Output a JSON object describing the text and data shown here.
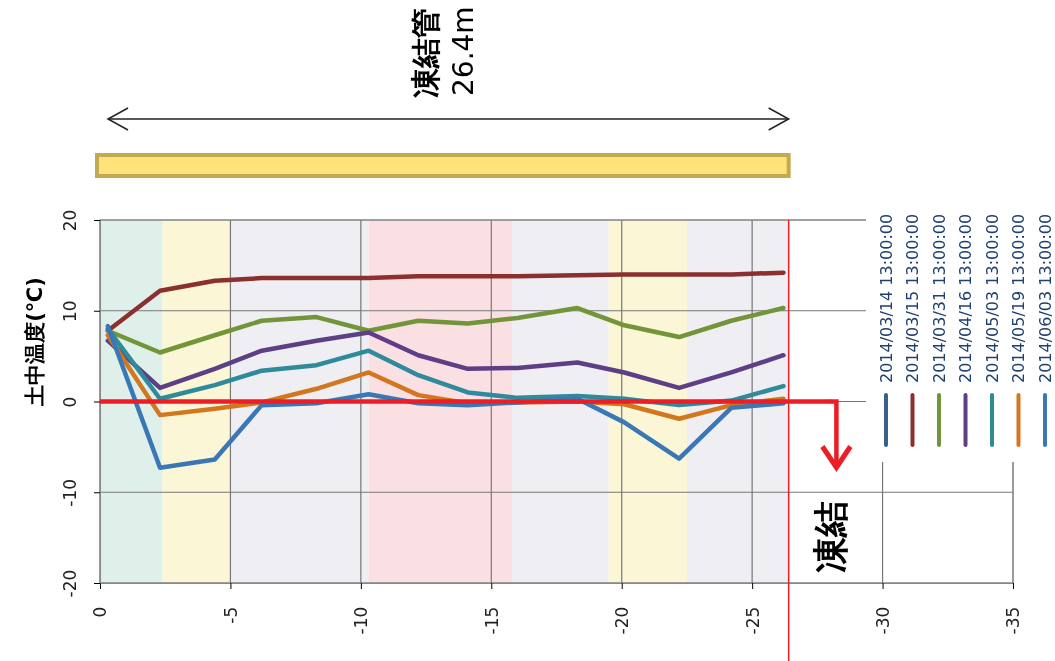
{
  "chart_data": {
    "type": "line",
    "ylabel": "土中温度(℃)",
    "annotations": [
      "凍結管",
      "26.4m"
    ],
    "x": [
      -0.3,
      -2.3,
      -4.4,
      -6.2,
      -8.3,
      -10.3,
      -12.2,
      -14.1,
      -16,
      -18.3,
      -20.1,
      -22.2,
      -24.2,
      -26.2
    ],
    "xlim": [
      0,
      -35
    ],
    "xticks": [
      0,
      -5,
      -10,
      -15,
      -20,
      -25,
      -30,
      -35
    ],
    "ylim": [
      -20,
      20
    ],
    "yticks": [
      -20,
      -10,
      0,
      10,
      20
    ],
    "grid": true,
    "legend": "right",
    "line_style": "solid",
    "marker": "none",
    "series": [
      {
        "name": "2014/03/14 13:00:00",
        "color": "#3b5f8a",
        "values": [
          null,
          null,
          null,
          null,
          null,
          null,
          null,
          null,
          null,
          null,
          null,
          null,
          null,
          null
        ]
      },
      {
        "name": "2014/03/15 13:00:00",
        "color": "#8b2f2f",
        "values": [
          7.8,
          12.2,
          13.3,
          13.6,
          13.6,
          13.6,
          13.8,
          13.8,
          13.8,
          13.9,
          14,
          14,
          14,
          14.2
        ]
      },
      {
        "name": "2014/03/31 13:00:00",
        "color": "#73953a",
        "values": [
          7.8,
          5.4,
          7.3,
          8.9,
          9.3,
          7.8,
          8.9,
          8.6,
          9.2,
          10.3,
          8.4,
          7.1,
          8.9,
          10.3
        ]
      },
      {
        "name": "2014/04/16 13:00:00",
        "color": "#5e3f86",
        "values": [
          6.7,
          1.5,
          3.6,
          5.6,
          6.7,
          7.6,
          5.1,
          3.6,
          3.7,
          4.3,
          3.2,
          1.5,
          3.2,
          5.1
        ]
      },
      {
        "name": "2014/05/03 13:00:00",
        "color": "#2f8a9c",
        "values": [
          8,
          0.3,
          1.8,
          3.4,
          4,
          5.6,
          2.9,
          1,
          0.4,
          0.6,
          0.3,
          -0.4,
          0.1,
          1.7
        ]
      },
      {
        "name": "2014/05/19 13:00:00",
        "color": "#d2761f",
        "values": [
          7.3,
          -1.5,
          -0.8,
          -0.1,
          1.4,
          3.2,
          0.7,
          -0.2,
          -0.1,
          0,
          -0.3,
          -1.9,
          -0.4,
          0.3
        ]
      },
      {
        "name": "2014/06/03 13:00:00",
        "color": "#3a78b5",
        "values": [
          8.3,
          -7.3,
          -6.4,
          -0.4,
          -0.2,
          0.8,
          -0.2,
          -0.4,
          -0.1,
          0.3,
          -2.3,
          -6.3,
          -0.7,
          -0.2
        ]
      }
    ],
    "bands": [
      {
        "axis": "x",
        "from": 0,
        "to": -2.4,
        "color": "#dff0ea"
      },
      {
        "axis": "x",
        "from": -2.4,
        "to": -5,
        "color": "#fbf6d6"
      },
      {
        "axis": "x",
        "from": -5,
        "to": -10.3,
        "color": "#eeeef3"
      },
      {
        "axis": "x",
        "from": -10.3,
        "to": -15.8,
        "color": "#fbe0e3"
      },
      {
        "axis": "x",
        "from": -15.8,
        "to": -19.5,
        "color": "#eeeef3"
      },
      {
        "axis": "x",
        "from": -19.5,
        "to": -22.5,
        "color": "#fbf6d6"
      },
      {
        "axis": "x",
        "from": -22.5,
        "to": -26.4,
        "color": "#eeeef3"
      }
    ],
    "ref_lines": [
      {
        "axis": "y",
        "value": 0,
        "label": "凍結",
        "color": "#ee1c24"
      },
      {
        "axis": "x",
        "value": -26.4,
        "color": "#ee1c24"
      }
    ]
  }
}
